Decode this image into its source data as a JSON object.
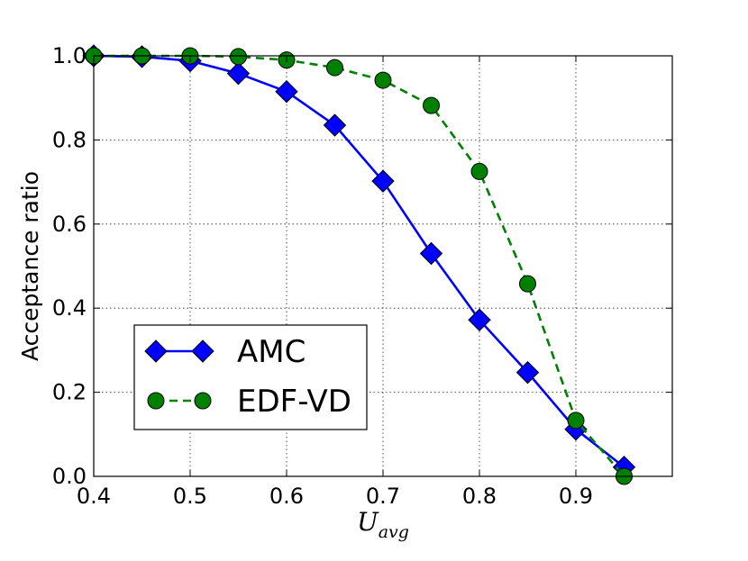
{
  "chart_data": {
    "type": "line",
    "title": "",
    "xlabel": {
      "main": "U",
      "sub": "avg"
    },
    "ylabel": "Acceptance ratio",
    "xlim": [
      0.4,
      1.0
    ],
    "ylim": [
      0.0,
      1.0
    ],
    "x_ticks": [
      0.4,
      0.5,
      0.6,
      0.7,
      0.8,
      0.9
    ],
    "x_tick_labels": [
      "0.4",
      "0.5",
      "0.6",
      "0.7",
      "0.8",
      "0.9"
    ],
    "y_ticks": [
      0.0,
      0.2,
      0.4,
      0.6,
      0.8,
      1.0
    ],
    "y_tick_labels": [
      "0.0",
      "0.2",
      "0.4",
      "0.6",
      "0.8",
      "1.0"
    ],
    "grid": true,
    "legend_position": "lower-left",
    "x": [
      0.4,
      0.45,
      0.5,
      0.55,
      0.6,
      0.65,
      0.7,
      0.75,
      0.8,
      0.85,
      0.9,
      0.95
    ],
    "series": [
      {
        "name": "AMC",
        "color": "#0000ff",
        "line_style": "solid",
        "marker": "diamond",
        "values": [
          1.0,
          0.998,
          0.988,
          0.958,
          0.915,
          0.835,
          0.702,
          0.53,
          0.372,
          0.247,
          0.112,
          0.022
        ]
      },
      {
        "name": "EDF-VD",
        "color": "#008000",
        "line_style": "dashed",
        "marker": "circle",
        "values": [
          1.0,
          1.0,
          1.0,
          0.998,
          0.99,
          0.972,
          0.942,
          0.882,
          0.725,
          0.458,
          0.133,
          0.0
        ]
      }
    ]
  }
}
